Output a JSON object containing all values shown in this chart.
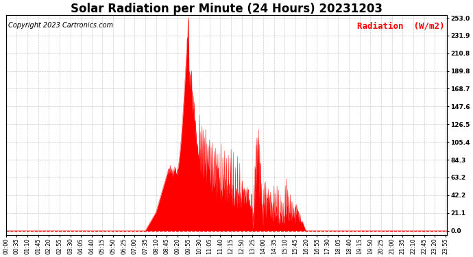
{
  "title": "Solar Radiation per Minute (24 Hours) 20231203",
  "copyright_text": "Copyright 2023 Cartronics.com",
  "ylabel": "Radiation  (W/m2)",
  "ylabel_color": "#ff0000",
  "background_color": "#ffffff",
  "plot_bg_color": "#ffffff",
  "line_color": "#ff0000",
  "fill_color": "#ff0000",
  "zero_line_color": "#ff0000",
  "grid_color": "#bbbbbb",
  "ymin": 0.0,
  "ymax": 253.0,
  "yticks": [
    0.0,
    21.1,
    42.2,
    63.2,
    84.3,
    105.4,
    126.5,
    147.6,
    168.7,
    189.8,
    210.8,
    231.9,
    253.0
  ],
  "title_fontsize": 12,
  "copyright_fontsize": 7,
  "ylabel_fontsize": 9,
  "tick_fontsize": 6,
  "num_minutes": 1440
}
